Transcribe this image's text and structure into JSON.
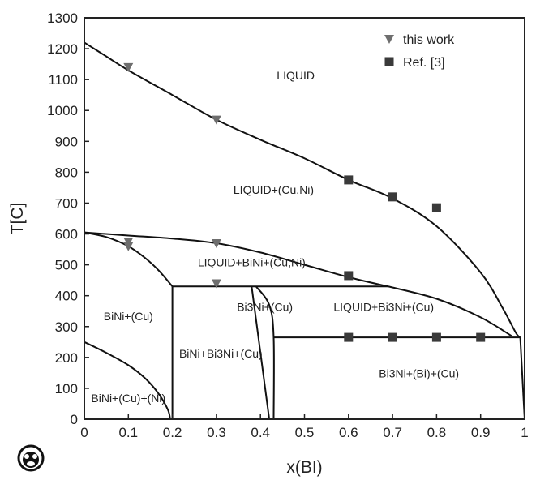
{
  "chart_data": {
    "type": "scatter",
    "xlabel": "x(BI)",
    "ylabel": "T[C]",
    "xlim": [
      0,
      1
    ],
    "ylim": [
      0,
      1300
    ],
    "x_ticks": [
      "0",
      "0.1",
      "0.2",
      "0.3",
      "0.4",
      "0.5",
      "0.6",
      "0.7",
      "0.8",
      "0.9",
      "1"
    ],
    "y_ticks": [
      "0",
      "100",
      "200",
      "300",
      "400",
      "500",
      "600",
      "700",
      "800",
      "900",
      "1000",
      "1100",
      "1200",
      "1300"
    ],
    "legend_position": "top-right",
    "series": [
      {
        "name": "this work",
        "marker": "triangle-down",
        "color": "#6e6e6e",
        "points": [
          {
            "x": 0.1,
            "y": 1140
          },
          {
            "x": 0.3,
            "y": 970
          },
          {
            "x": 0.1,
            "y": 575
          },
          {
            "x": 0.1,
            "y": 560
          },
          {
            "x": 0.3,
            "y": 570
          },
          {
            "x": 0.3,
            "y": 440
          }
        ]
      },
      {
        "name": "Ref. [3]",
        "marker": "square",
        "color": "#3a3a3a",
        "points": [
          {
            "x": 0.6,
            "y": 775
          },
          {
            "x": 0.7,
            "y": 720
          },
          {
            "x": 0.8,
            "y": 685
          },
          {
            "x": 0.6,
            "y": 465
          },
          {
            "x": 0.6,
            "y": 265
          },
          {
            "x": 0.7,
            "y": 265
          },
          {
            "x": 0.8,
            "y": 265
          },
          {
            "x": 0.9,
            "y": 265
          }
        ]
      }
    ],
    "phase_boundaries": [
      {
        "name": "liquidus",
        "points": [
          [
            0,
            1220
          ],
          [
            0.05,
            1175
          ],
          [
            0.1,
            1130
          ],
          [
            0.2,
            1050
          ],
          [
            0.3,
            970
          ],
          [
            0.4,
            905
          ],
          [
            0.5,
            845
          ],
          [
            0.6,
            775
          ],
          [
            0.7,
            715
          ],
          [
            0.8,
            625
          ],
          [
            0.9,
            475
          ],
          [
            0.95,
            360
          ],
          [
            0.98,
            280
          ],
          [
            0.99,
            265
          ]
        ]
      },
      {
        "name": "upper-liquid-boundary",
        "points": [
          [
            0,
            605
          ],
          [
            0.1,
            595
          ],
          [
            0.2,
            585
          ],
          [
            0.3,
            570
          ],
          [
            0.4,
            540
          ],
          [
            0.5,
            500
          ],
          [
            0.6,
            460
          ],
          [
            0.69,
            430
          ]
        ]
      },
      {
        "name": "bini-solvus",
        "points": [
          [
            0,
            605
          ],
          [
            0.05,
            590
          ],
          [
            0.1,
            560
          ],
          [
            0.14,
            520
          ],
          [
            0.17,
            480
          ],
          [
            0.2,
            430
          ]
        ]
      },
      {
        "name": "eutectic-line-430",
        "points": [
          [
            0.2,
            430
          ],
          [
            0.69,
            430
          ]
        ]
      },
      {
        "name": "liquid-bi3ni-boundary",
        "points": [
          [
            0.69,
            430
          ],
          [
            0.8,
            390
          ],
          [
            0.9,
            330
          ],
          [
            0.97,
            270
          ]
        ]
      },
      {
        "name": "line-265",
        "points": [
          [
            0.43,
            265
          ],
          [
            0.99,
            265
          ]
        ]
      },
      {
        "name": "bini-composition-line",
        "points": [
          [
            0.2,
            430
          ],
          [
            0.2,
            0
          ]
        ]
      },
      {
        "name": "bi3ni-boundary-left",
        "points": [
          [
            0.38,
            430
          ],
          [
            0.42,
            0
          ]
        ]
      },
      {
        "name": "bi3ni-boundary-right",
        "points": [
          [
            0.39,
            430
          ],
          [
            0.42,
            370
          ],
          [
            0.43,
            265
          ],
          [
            0.43,
            0
          ]
        ]
      },
      {
        "name": "lower-solvus",
        "points": [
          [
            0,
            250
          ],
          [
            0.05,
            215
          ],
          [
            0.1,
            175
          ],
          [
            0.14,
            130
          ],
          [
            0.17,
            80
          ],
          [
            0.19,
            30
          ],
          [
            0.195,
            0
          ]
        ]
      },
      {
        "name": "bi-side-boundary",
        "points": [
          [
            0.99,
            265
          ],
          [
            1.0,
            0
          ]
        ]
      }
    ],
    "regions": [
      {
        "label": "LIQUID",
        "x": 0.48,
        "y": 1100
      },
      {
        "label": "LIQUID+(Cu,Ni)",
        "x": 0.43,
        "y": 730
      },
      {
        "label": "LIQUID+BiNi+(Cu,Ni)",
        "x": 0.38,
        "y": 495
      },
      {
        "label": "BiNi+(Cu)",
        "x": 0.1,
        "y": 320
      },
      {
        "label": "Bi3Ni+(Cu)",
        "x": 0.41,
        "y": 350
      },
      {
        "label": "LIQUID+Bi3Ni+(Cu)",
        "x": 0.68,
        "y": 350
      },
      {
        "label": "BiNi+Bi3Ni+(Cu)",
        "x": 0.31,
        "y": 200
      },
      {
        "label": "Bi3Ni+(Bi)+(Cu)",
        "x": 0.76,
        "y": 135
      },
      {
        "label": "BiNi+(Cu)+(Ni)",
        "x": 0.1,
        "y": 55
      }
    ]
  }
}
